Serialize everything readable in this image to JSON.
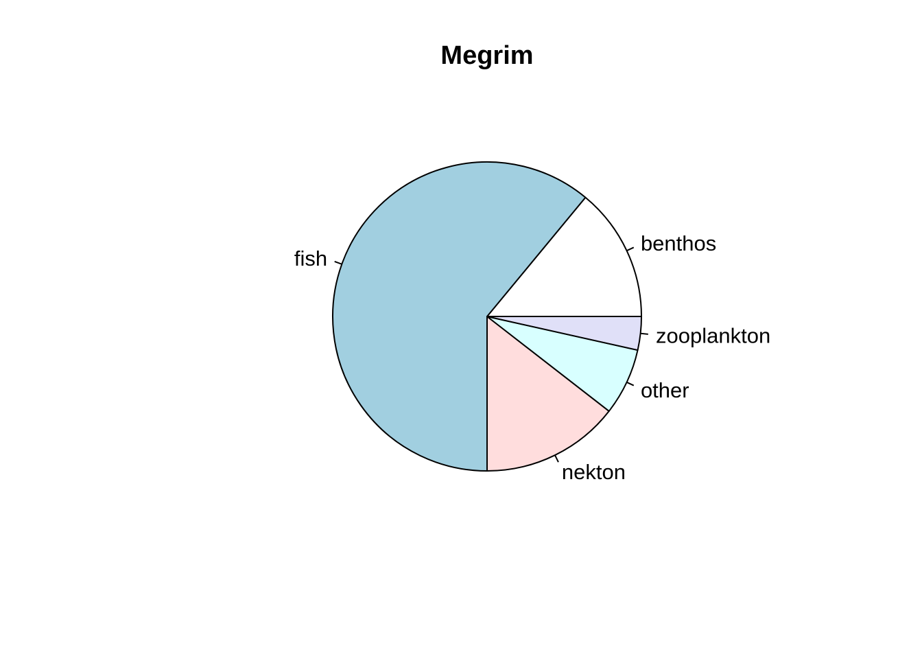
{
  "chart_data": {
    "type": "pie",
    "title": "Megrim",
    "direction": "counterclockwise",
    "start": "3 o'clock",
    "slices": [
      {
        "label": "benthos",
        "value": 14.0,
        "color": "#ffffff"
      },
      {
        "label": "fish",
        "value": 61.0,
        "color": "#a1cfe0"
      },
      {
        "label": "nekton",
        "value": 14.5,
        "color": "#ffdddd"
      },
      {
        "label": "other",
        "value": 7.0,
        "color": "#d8ffff"
      },
      {
        "label": "zooplankton",
        "value": 3.5,
        "color": "#e0e0f8"
      }
    ]
  }
}
